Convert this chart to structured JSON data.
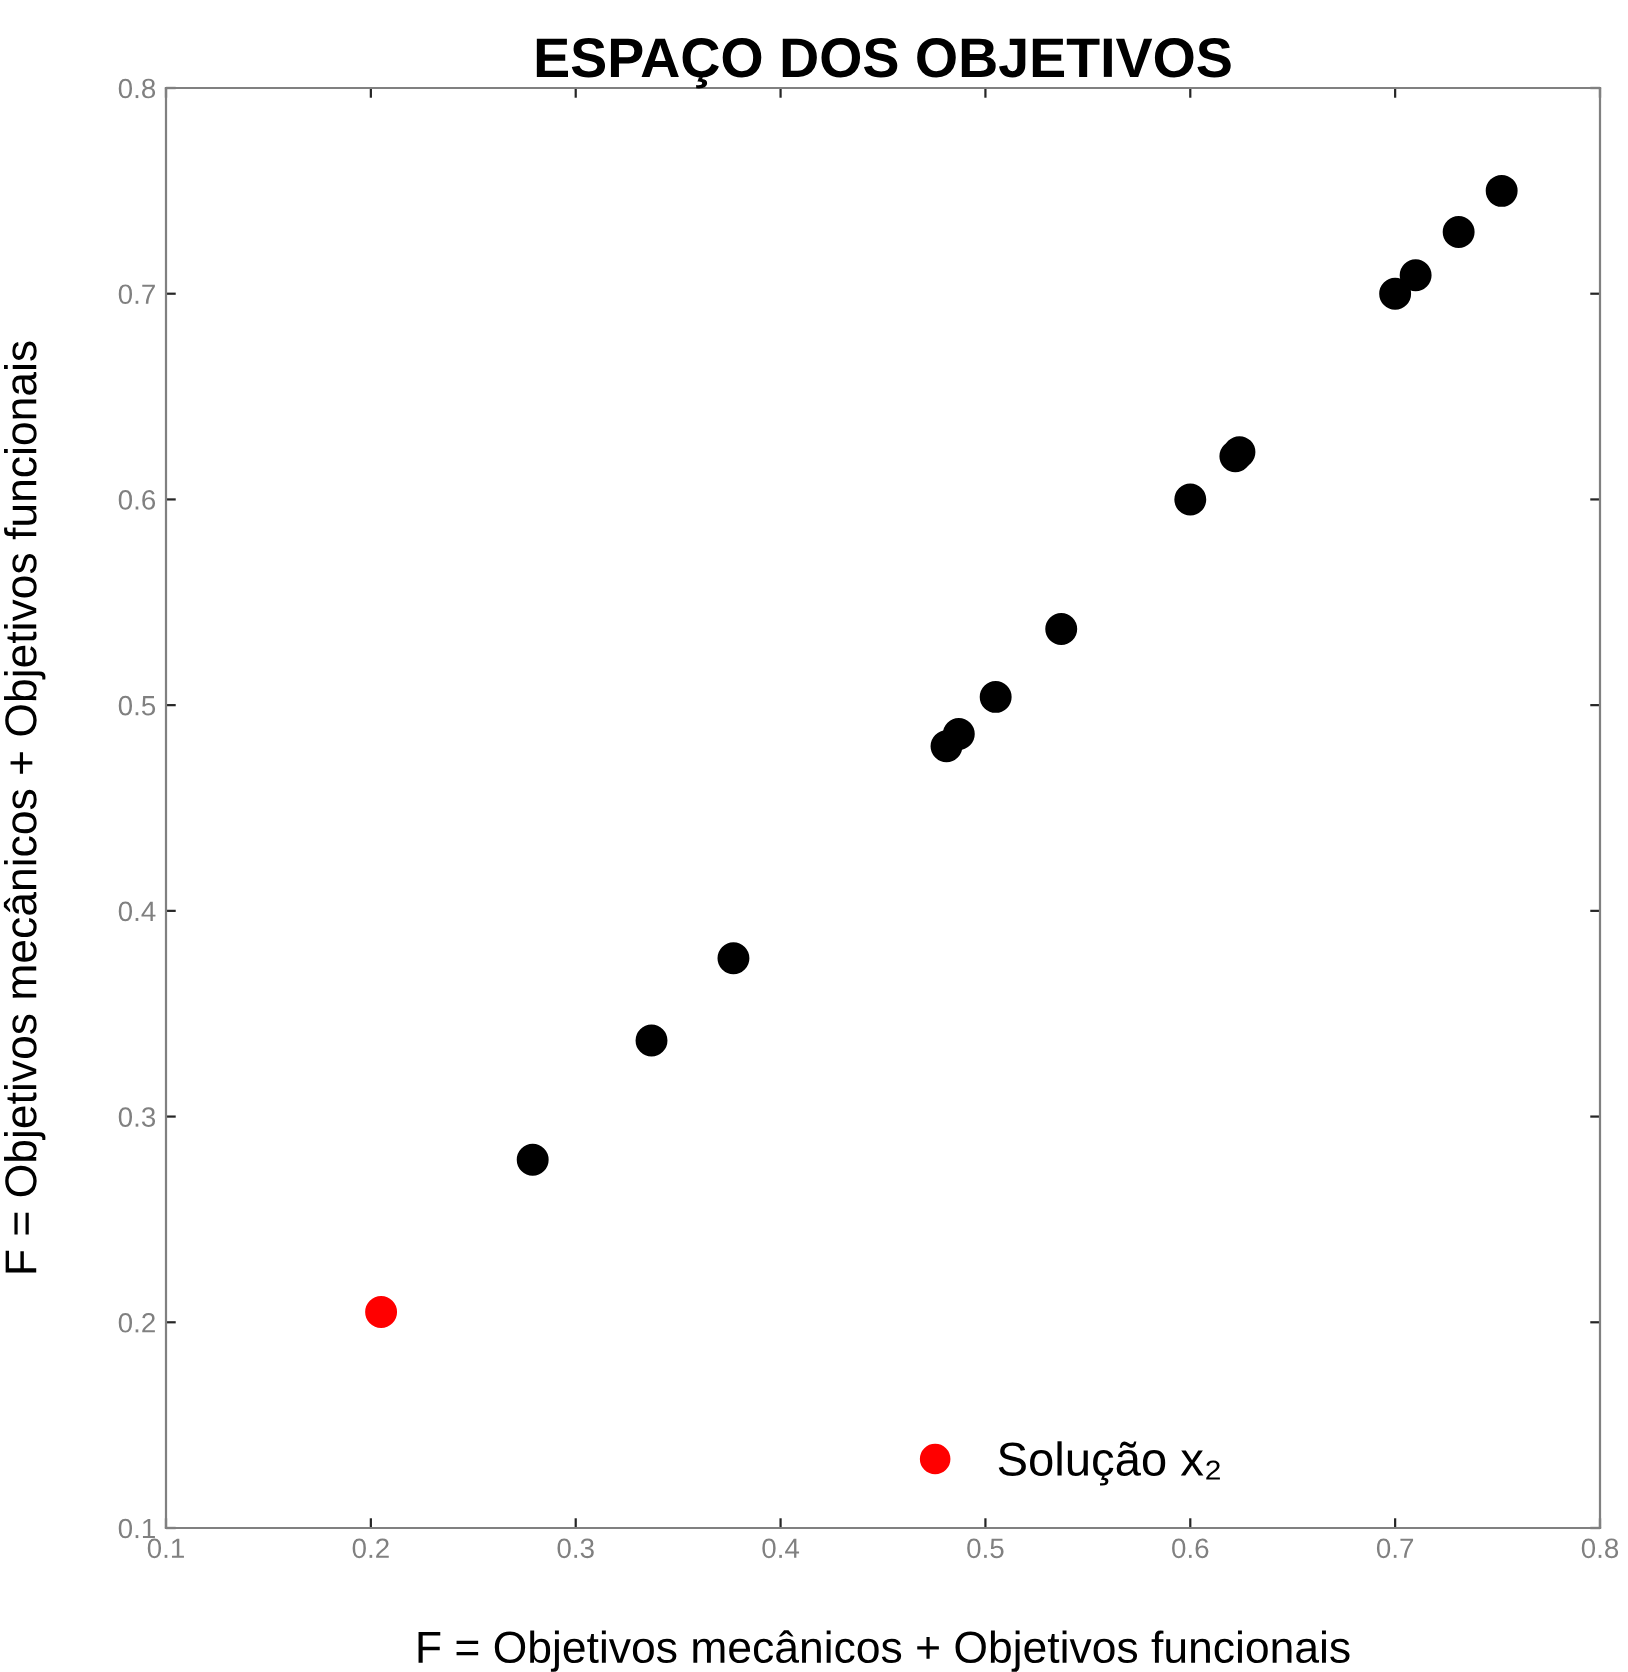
{
  "chart_data": {
    "type": "scatter",
    "title": "ESPAÇO DOS OBJETIVOS",
    "xlabel": "F = Objetivos mecânicos + Objetivos funcionais",
    "ylabel": "F = Objetivos mecânicos + Objetivos funcionais",
    "series": [
      {
        "color": "#000000",
        "x": [
          0.279,
          0.337,
          0.377,
          0.481,
          0.487,
          0.505,
          0.537,
          0.6,
          0.622,
          0.624,
          0.7,
          0.71,
          0.731,
          0.752
        ],
        "values": [
          0.279,
          0.337,
          0.377,
          0.48,
          0.486,
          0.504,
          0.537,
          0.6,
          0.621,
          0.623,
          0.7,
          0.709,
          0.73,
          0.75
        ]
      },
      {
        "name": "Solução x₂",
        "color": "#ff0000",
        "x": [
          0.205
        ],
        "values": [
          0.205
        ]
      }
    ],
    "xlim": [
      0.1,
      0.8
    ],
    "ylim": [
      0.1,
      0.8
    ],
    "xticks": [
      0.1,
      0.2,
      0.3,
      0.4,
      0.5,
      0.6,
      0.7,
      0.8
    ],
    "yticks": [
      0.1,
      0.2,
      0.3,
      0.4,
      0.5,
      0.6,
      0.7,
      0.8
    ],
    "marker": "circle",
    "grid": false,
    "legend": "bottom"
  }
}
